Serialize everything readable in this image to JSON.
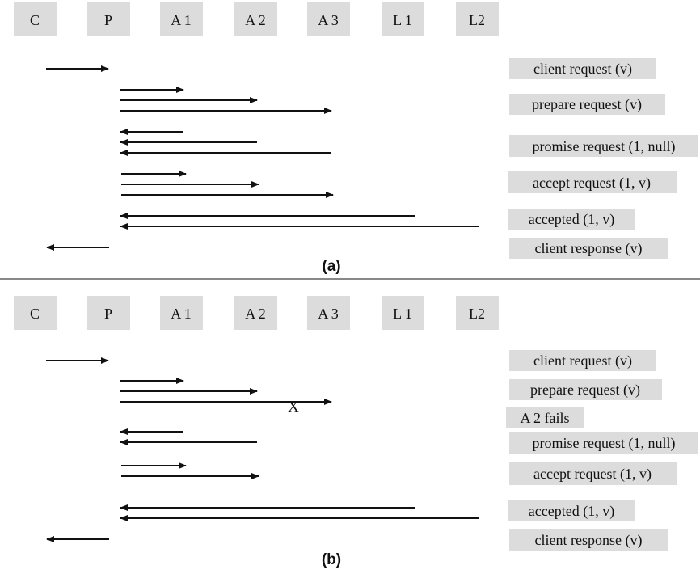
{
  "colors": {
    "box": "#dcdcdc",
    "line": "#111111"
  },
  "panel_a": {
    "caption": "(a)",
    "actors": [
      "C",
      "P",
      "A 1",
      "A 2",
      "A 3",
      "L 1",
      "L2"
    ],
    "labels": [
      "client request (v)",
      "prepare request (v)",
      "promise request (1, null)",
      "accept request (1, v)",
      "accepted (1, v)",
      "client response (v)"
    ]
  },
  "panel_b": {
    "caption": "(b)",
    "actors": [
      "C",
      "P",
      "A 1",
      "A 2",
      "A 3",
      "L 1",
      "L2"
    ],
    "labels": [
      "client request (v)",
      "prepare request (v)",
      "A 2 fails",
      "promise request (1, null)",
      "accept request (1, v)",
      "accepted (1, v)",
      "client response (v)"
    ],
    "failure_mark": "X"
  }
}
